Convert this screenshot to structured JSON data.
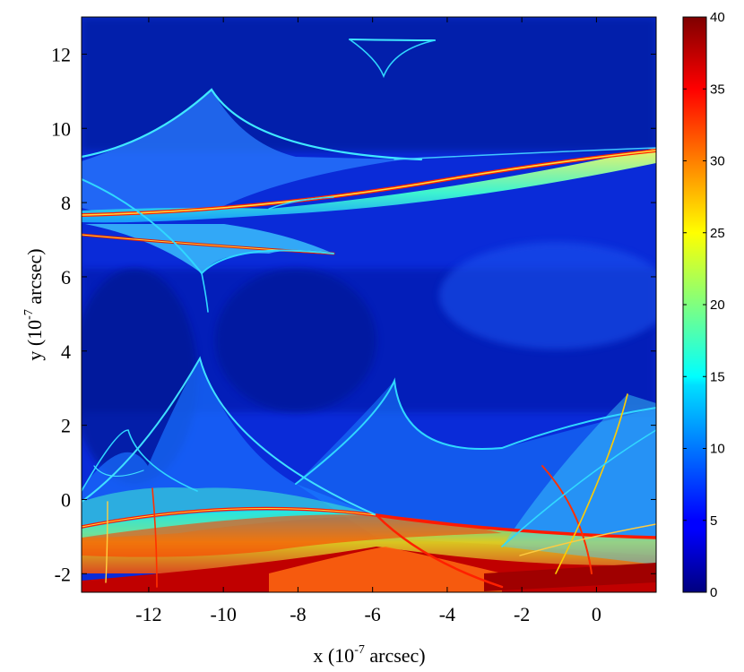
{
  "chart_data": {
    "type": "heatmap",
    "title": "",
    "xlabel": {
      "prefix": "x (10",
      "exponent": "-7",
      "suffix": " arcsec)"
    },
    "ylabel": {
      "prefix": "y (10",
      "exponent": "-7",
      "suffix": " arcsec)"
    },
    "xlim": [
      -13.8,
      1.6
    ],
    "ylim": [
      -2.5,
      13.0
    ],
    "xticks": [
      -12,
      -10,
      -8,
      -6,
      -4,
      -2,
      0
    ],
    "yticks": [
      -2,
      0,
      2,
      4,
      6,
      8,
      10,
      12
    ],
    "colorbar": {
      "range": [
        0,
        40
      ],
      "ticks": [
        0,
        5,
        10,
        15,
        20,
        25,
        30,
        35,
        40
      ],
      "colormap": "jet"
    },
    "caustic_cusps": [
      {
        "x": -4.3,
        "y": 12.5
      },
      {
        "x": -5.8,
        "y": 11.4
      },
      {
        "x": -10.2,
        "y": 10.9
      },
      {
        "x": -10.3,
        "y": 5.0
      },
      {
        "x": -10.4,
        "y": 3.8
      },
      {
        "x": -5.2,
        "y": 3.1
      },
      {
        "x": -12.5,
        "y": 1.9
      },
      {
        "x": 0.9,
        "y": 2.6
      },
      {
        "x": -13.3,
        "y": 1.2
      },
      {
        "x": -7.3,
        "y": 6.5
      },
      {
        "x": -8.0,
        "y": 7.7
      }
    ],
    "high_magnification_bands": [
      {
        "from": [
          -13.8,
          7.5
        ],
        "to": [
          1.6,
          9.4
        ],
        "value": 40
      },
      {
        "from": [
          -13.8,
          7.0
        ],
        "to": [
          -7.0,
          6.6
        ],
        "value": 38
      },
      {
        "from": [
          -13.8,
          -0.9
        ],
        "to": [
          1.6,
          2.5
        ],
        "value": 34
      },
      {
        "from": [
          -13.8,
          -2.4
        ],
        "to": [
          1.6,
          -1.8
        ],
        "value": 40
      }
    ]
  }
}
